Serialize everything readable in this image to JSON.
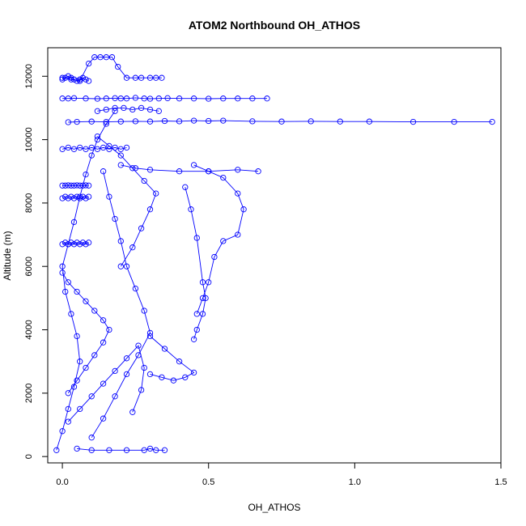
{
  "chart_data": {
    "type": "scatter",
    "title": "ATOM2 Northbound OH_ATHOS",
    "xlabel": "OH_ATHOS",
    "ylabel": "Altitude (m)",
    "xlim": [
      -0.05,
      1.5
    ],
    "ylim": [
      -200,
      12900
    ],
    "xticks": [
      0,
      0.5,
      1.0,
      1.5
    ],
    "xtick_labels": [
      "0.0",
      "0.5",
      "1.0",
      "1.5"
    ],
    "yticks": [
      0,
      2000,
      4000,
      6000,
      8000,
      10000,
      12000
    ],
    "ytick_labels": [
      "0",
      "2000",
      "4000",
      "6000",
      "8000",
      "10000",
      "12000"
    ],
    "grid": false,
    "legend": "none",
    "series_color": "#0000ff",
    "marker": "open-circle",
    "line": "connected",
    "series": [
      {
        "x": [
          0.0,
          0.02,
          0.04,
          0.08,
          0.12,
          0.15,
          0.18,
          0.2,
          0.22,
          0.25,
          0.28,
          0.3,
          0.33,
          0.36,
          0.4,
          0.45,
          0.5,
          0.55,
          0.6,
          0.65,
          0.7
        ],
        "y": [
          11300,
          11300,
          11310,
          11300,
          11290,
          11300,
          11310,
          11300,
          11300,
          11320,
          11300,
          11290,
          11300,
          11310,
          11300,
          11300,
          11290,
          11300,
          11300,
          11300,
          11300
        ]
      },
      {
        "x": [
          0.02,
          0.05,
          0.1,
          0.15,
          0.2,
          0.25,
          0.3,
          0.35,
          0.4,
          0.45,
          0.5,
          0.55,
          0.65,
          0.75,
          0.85,
          0.95,
          1.05,
          1.2,
          1.34,
          1.47
        ],
        "y": [
          10550,
          10560,
          10570,
          10560,
          10570,
          10580,
          10570,
          10590,
          10580,
          10600,
          10590,
          10600,
          10580,
          10570,
          10580,
          10570,
          10570,
          10560,
          10560,
          10560
        ]
      },
      {
        "x": [
          0.0,
          0.03,
          0.06,
          0.09,
          0.11,
          0.13,
          0.15,
          0.17,
          0.19,
          0.22,
          0.25,
          0.27,
          0.3,
          0.32,
          0.34
        ],
        "y": [
          11950,
          11900,
          11850,
          12400,
          12600,
          12600,
          12600,
          12600,
          12300,
          11950,
          11950,
          11950,
          11950,
          11950,
          11950
        ]
      },
      {
        "x": [
          0.0,
          0.01,
          0.02,
          0.03,
          0.04,
          0.05,
          0.06,
          0.07,
          0.08,
          0.09
        ],
        "y": [
          11900,
          11950,
          12000,
          11950,
          11900,
          11850,
          11900,
          11950,
          11900,
          11850
        ]
      },
      {
        "x": [
          0.12,
          0.15,
          0.18,
          0.21,
          0.24,
          0.27,
          0.3,
          0.33
        ],
        "y": [
          10900,
          10950,
          11000,
          11000,
          10950,
          11000,
          10950,
          10900
        ]
      },
      {
        "x": [
          0.0,
          0.02,
          0.04,
          0.06,
          0.08,
          0.1,
          0.12,
          0.14,
          0.16,
          0.18,
          0.2,
          0.22
        ],
        "y": [
          9700,
          9750,
          9700,
          9750,
          9700,
          9750,
          9700,
          9750,
          9700,
          9750,
          9700,
          9750
        ]
      },
      {
        "x": [
          0.0,
          0.01,
          0.02,
          0.03,
          0.04,
          0.05,
          0.06,
          0.07,
          0.08,
          0.09
        ],
        "y": [
          8550,
          8550,
          8560,
          8550,
          8550,
          8560,
          8550,
          8550,
          8560,
          8550
        ]
      },
      {
        "x": [
          0.0,
          0.01,
          0.02,
          0.03,
          0.04,
          0.05,
          0.06,
          0.07,
          0.08,
          0.09
        ],
        "y": [
          6700,
          6750,
          6700,
          6750,
          6700,
          6750,
          6700,
          6750,
          6700,
          6750
        ]
      },
      {
        "x": [
          0.0,
          0.01,
          0.02,
          0.03,
          0.04,
          0.05,
          0.06,
          0.07,
          0.08,
          0.09
        ],
        "y": [
          8150,
          8200,
          8150,
          8200,
          8150,
          8200,
          8150,
          8200,
          8150,
          8200
        ]
      },
      {
        "x": [
          0.45,
          0.5,
          0.55,
          0.6,
          0.62,
          0.6,
          0.55,
          0.52,
          0.5,
          0.48,
          0.46
        ],
        "y": [
          9200,
          9000,
          8800,
          8300,
          7800,
          7000,
          6800,
          6300,
          5500,
          5000,
          4500
        ]
      },
      {
        "x": [
          0.2,
          0.25,
          0.3,
          0.4,
          0.5,
          0.6,
          0.67
        ],
        "y": [
          9200,
          9100,
          9050,
          9000,
          9000,
          9050,
          9000
        ]
      },
      {
        "x": [
          0.42,
          0.44,
          0.46,
          0.48,
          0.49,
          0.48,
          0.46,
          0.45
        ],
        "y": [
          8500,
          7800,
          6900,
          5500,
          5000,
          4500,
          4000,
          3700
        ]
      },
      {
        "x": [
          0.05,
          0.1,
          0.16,
          0.22,
          0.28,
          0.3,
          0.32,
          0.35
        ],
        "y": [
          250,
          200,
          200,
          200,
          200,
          250,
          200,
          200
        ]
      },
      {
        "x": [
          -0.02,
          0.0,
          0.02,
          0.04,
          0.06,
          0.05,
          0.03,
          0.01,
          0.0,
          0.02,
          0.04,
          0.06,
          0.08,
          0.1,
          0.12,
          0.15,
          0.18
        ],
        "y": [
          200,
          800,
          1500,
          2200,
          3000,
          3800,
          4500,
          5200,
          6000,
          6700,
          7400,
          8200,
          8900,
          9500,
          10000,
          10500,
          10900
        ]
      },
      {
        "x": [
          0.1,
          0.14,
          0.18,
          0.22,
          0.26,
          0.3,
          0.28,
          0.25,
          0.22,
          0.2,
          0.18,
          0.16,
          0.14
        ],
        "y": [
          600,
          1200,
          1900,
          2600,
          3200,
          3900,
          4600,
          5300,
          6000,
          6800,
          7500,
          8200,
          9000
        ]
      },
      {
        "x": [
          0.3,
          0.34,
          0.38,
          0.42,
          0.45,
          0.4,
          0.35,
          0.3
        ],
        "y": [
          2600,
          2500,
          2400,
          2500,
          2650,
          3000,
          3400,
          3800
        ]
      },
      {
        "x": [
          0.12,
          0.16,
          0.2,
          0.24,
          0.28,
          0.32,
          0.3,
          0.27,
          0.24,
          0.2
        ],
        "y": [
          10100,
          9800,
          9500,
          9100,
          8700,
          8300,
          7800,
          7200,
          6600,
          6000
        ]
      },
      {
        "x": [
          0.02,
          0.06,
          0.1,
          0.14,
          0.18,
          0.22,
          0.26,
          0.28,
          0.27,
          0.24
        ],
        "y": [
          1100,
          1500,
          1900,
          2300,
          2700,
          3100,
          3500,
          2800,
          2100,
          1400
        ]
      },
      {
        "x": [
          0.0,
          0.02,
          0.05,
          0.08,
          0.11,
          0.14,
          0.16,
          0.14,
          0.11,
          0.08,
          0.05,
          0.02
        ],
        "y": [
          5800,
          5500,
          5200,
          4900,
          4600,
          4300,
          4000,
          3600,
          3200,
          2800,
          2400,
          2000
        ]
      }
    ]
  }
}
